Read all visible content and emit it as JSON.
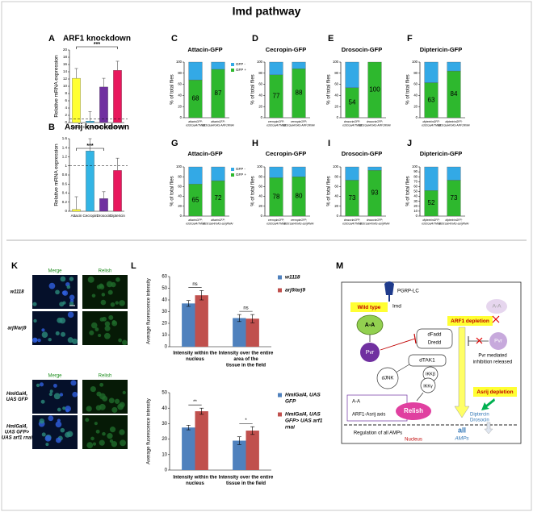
{
  "title": "Imd pathway",
  "chart_data": [
    {
      "type": "bar",
      "panel": "A",
      "title": "ARF1 knockdown",
      "y_label": "Relative mRNA expression",
      "categories": [
        "Attacin",
        "Cecropin",
        "Drosocin",
        "Diptericin"
      ],
      "values": [
        12.2,
        0.4,
        9.8,
        14.4
      ],
      "errors": [
        2.7,
        2.6,
        2.4,
        2.5
      ],
      "colors": [
        "#ffff33",
        "#33b5e5",
        "#7030a0",
        "#e8175d"
      ],
      "ylim": [
        0,
        20
      ],
      "yticks": [
        0,
        2,
        4,
        6,
        8,
        10,
        12,
        14,
        16,
        18,
        20
      ],
      "reference_line": 1,
      "significance": "***"
    },
    {
      "type": "bar",
      "panel": "B",
      "title": "Asrij knockdown",
      "y_label": "Relative mRNA expression",
      "categories": [
        "Attacin",
        "Cecropin",
        "Drosocin",
        "Diptericin"
      ],
      "values": [
        0.04,
        1.33,
        0.28,
        0.9
      ],
      "errors": [
        0.28,
        0.27,
        0.15,
        0.27
      ],
      "colors": [
        "#ffff33",
        "#33b5e5",
        "#7030a0",
        "#e8175d"
      ],
      "ylim": [
        0,
        1.6
      ],
      "yticks": [
        0,
        0.2,
        0.4,
        0.6,
        0.8,
        1,
        1.2,
        1.4,
        1.6
      ],
      "reference_line": 1,
      "significance": "***"
    },
    {
      "type": "stacked_bar",
      "panel": "C",
      "title": "Attacin-GFP",
      "y_label": "% of total flies",
      "categories": [
        [
          "attacinGFP;",
          "e33cGal4/TM6B"
        ],
        [
          "attacinGFP;",
          "e33cGal4/UAS-ARF1RNAi"
        ]
      ],
      "series": [
        {
          "name": "GFP +",
          "color": "#2eb82e",
          "values": [
            68,
            87
          ],
          "data_labels": true
        },
        {
          "name": "GFP -",
          "color": "#33a9e6",
          "values": [
            32,
            13
          ]
        }
      ],
      "ylim": [
        0,
        100
      ],
      "yticks": [
        0,
        20,
        40,
        60,
        80,
        100
      ]
    },
    {
      "type": "stacked_bar",
      "panel": "D",
      "title": "Cecropin-GFP",
      "y_label": "% of total flies",
      "categories": [
        [
          "cecropinGFP;",
          "e33cGal4/TM6B"
        ],
        [
          "cecropinGFP;",
          "e33cGal4/UAS-ARF1RNAi"
        ]
      ],
      "series": [
        {
          "color": "#2eb82e",
          "values": [
            77,
            88
          ],
          "data_labels": true
        },
        {
          "color": "#33a9e6",
          "values": [
            23,
            12
          ]
        }
      ],
      "ylim": [
        0,
        100
      ],
      "yticks": [
        0,
        20,
        40,
        60,
        80,
        100
      ]
    },
    {
      "type": "stacked_bar",
      "panel": "E",
      "title": "Drosocin-GFP",
      "y_label": "% of total flies",
      "categories": [
        [
          "drosocinGFP;",
          "e33cGal4/TM6B"
        ],
        [
          "drosocinGFP;",
          "e33cGal4/UAS-ARF1RNAi"
        ]
      ],
      "series": [
        {
          "color": "#2eb82e",
          "values": [
            54,
            100
          ],
          "data_labels": true
        },
        {
          "color": "#33a9e6",
          "values": [
            46,
            0
          ]
        }
      ],
      "ylim": [
        0,
        100
      ],
      "yticks": [
        0,
        20,
        40,
        60,
        80,
        100
      ]
    },
    {
      "type": "stacked_bar",
      "panel": "F",
      "title": "Diptericin-GFP",
      "y_label": "% of total flies",
      "categories": [
        [
          "diptericinGFP;",
          "e33cGal4/TM6B"
        ],
        [
          "diptericinGFP;",
          "e33cGal4/UAS-ARF1RNAi"
        ]
      ],
      "series": [
        {
          "color": "#2eb82e",
          "values": [
            63,
            84
          ],
          "data_labels": true
        },
        {
          "color": "#33a9e6",
          "values": [
            37,
            16
          ]
        }
      ],
      "ylim": [
        0,
        100
      ],
      "yticks": [
        0,
        20,
        40,
        60,
        80,
        100
      ]
    },
    {
      "type": "stacked_bar",
      "panel": "G",
      "title": "Attacin-GFP",
      "y_label": "% of total flies",
      "categories": [
        [
          "attacinGFP;",
          "e33cGal4/TM6B"
        ],
        [
          "attacinGFP;",
          "e33cGal4/UAS-asrijRNAi"
        ]
      ],
      "series": [
        {
          "name": "GFP +",
          "color": "#2eb82e",
          "values": [
            65,
            72
          ],
          "data_labels": true
        },
        {
          "name": "GFP -",
          "color": "#33a9e6",
          "values": [
            35,
            28
          ]
        }
      ],
      "ylim": [
        0,
        100
      ],
      "yticks": [
        0,
        20,
        40,
        60,
        80,
        100
      ]
    },
    {
      "type": "stacked_bar",
      "panel": "H",
      "title": "Cecropin-GFP",
      "y_label": "% of total flies",
      "categories": [
        [
          "cecropinGFP;",
          "e33cGal4/TM6B"
        ],
        [
          "cecropinGFP;",
          "e33cGal4/UAS-asrijRNAi"
        ]
      ],
      "series": [
        {
          "color": "#2eb82e",
          "values": [
            78,
            80
          ],
          "data_labels": true
        },
        {
          "color": "#33a9e6",
          "values": [
            22,
            20
          ]
        }
      ],
      "ylim": [
        0,
        100
      ],
      "yticks": [
        0,
        20,
        40,
        60,
        80,
        100
      ]
    },
    {
      "type": "stacked_bar",
      "panel": "I",
      "title": "Drosocin-GFP",
      "y_label": "% of total flies",
      "categories": [
        [
          "drosocinGFP;",
          "e33cGal4/TM6B"
        ],
        [
          "drosocinGFP;",
          "e33cGal4/UAS-asrijRNAi"
        ]
      ],
      "series": [
        {
          "color": "#2eb82e",
          "values": [
            73,
            93
          ],
          "data_labels": true
        },
        {
          "color": "#33a9e6",
          "values": [
            27,
            7
          ]
        }
      ],
      "ylim": [
        0,
        100
      ],
      "yticks": [
        0,
        20,
        40,
        60,
        80,
        100
      ]
    },
    {
      "type": "stacked_bar",
      "panel": "J",
      "title": "Diptericin-GFP",
      "y_label": "% of total flies",
      "categories": [
        [
          "diptericinGFP;",
          "e33cGal4/TM6B"
        ],
        [
          "diptericinGFP;",
          "e33cGal4/UAS-asrijRNAi"
        ]
      ],
      "series": [
        {
          "color": "#2eb82e",
          "values": [
            52,
            73
          ],
          "data_labels": true
        },
        {
          "color": "#33a9e6",
          "values": [
            48,
            27
          ]
        }
      ],
      "ylim": [
        0,
        100
      ],
      "yticks": [
        0,
        10,
        20,
        30,
        40,
        50,
        60,
        70,
        80,
        90,
        100
      ]
    },
    {
      "type": "grouped_bar",
      "panel": "L",
      "y_label": "Average fluorescence intensity",
      "categories": [
        [
          "Intensity within the",
          "nucleus"
        ],
        [
          "Intensity over the entire",
          "area of the",
          "tissue in the field"
        ]
      ],
      "series": [
        {
          "name": "w1118",
          "color": "#4f81bd",
          "values": [
            37,
            24.5
          ],
          "errors": [
            2.5,
            3
          ]
        },
        {
          "name": "arj9/arj9",
          "color": "#c0504d",
          "values": [
            44,
            24
          ],
          "errors": [
            4,
            3.5
          ]
        }
      ],
      "ylim": [
        0,
        60
      ],
      "yticks": [
        0,
        10,
        20,
        30,
        40,
        50,
        60
      ],
      "significance": [
        "ns",
        "ns"
      ]
    },
    {
      "type": "grouped_bar",
      "y_label": "Average fluorescence intensity",
      "categories": [
        [
          "Intensity within the",
          "nucleus"
        ],
        [
          "Intensity over the entire",
          "tissue in the field"
        ]
      ],
      "series": [
        {
          "name": [
            "HmlGal4, UAS",
            "GFP"
          ],
          "color": "#4f81bd",
          "values": [
            27.5,
            19
          ],
          "errors": [
            1.5,
            2.5
          ]
        },
        {
          "name": [
            "HmlGal4, UAS",
            "GFP> UAS arf1",
            "rnai"
          ],
          "color": "#c0504d",
          "values": [
            38,
            25.5
          ],
          "errors": [
            2,
            2.5
          ]
        }
      ],
      "ylim": [
        0,
        50
      ],
      "yticks": [
        0,
        10,
        20,
        30,
        40,
        50
      ],
      "significance": [
        "**",
        "*"
      ]
    }
  ],
  "micrographs": {
    "panel": "K",
    "groups": [
      {
        "columns": [
          "Merge",
          "Relish"
        ],
        "rows": [
          "w1118",
          "arj9/arj9"
        ]
      },
      {
        "columns": [
          "Merge",
          "Relish"
        ],
        "rows": [
          [
            "HmlGal4,",
            "UAS GFP"
          ],
          [
            "HmlGal4,",
            "UAS GFP>",
            "UAS arf1 rnai"
          ]
        ]
      }
    ]
  },
  "diagram": {
    "panel": "M",
    "receptor": "PGRP-LC",
    "adaptor": "Imd",
    "wild_type": "Wild type",
    "ligand": "A-A",
    "pvr": "Pvr",
    "complex": [
      "dFadd",
      "Dredd"
    ],
    "kinase": "dTAK1",
    "jnk": "dJNK",
    "ikk": [
      "IKKβ",
      "IKKγ"
    ],
    "transcription_factor": "Relish",
    "arf1_depletion": "ARF1 depletion",
    "depleted_ligand": "A-A",
    "depleted_pvr": "Pvr",
    "release_note": [
      "Pvr mediated",
      "inhibition released"
    ],
    "asrij_depletion": "Asrij depletion",
    "amps": [
      "Diptercin",
      "Drosocin"
    ],
    "all": "all",
    "amps_label": "AMPs",
    "legend": {
      "symbol": "A-A",
      "text": "ARF1-Asrij axis"
    },
    "regulation": "Regulation of all AMPs",
    "nucleus": "Nucleus"
  }
}
